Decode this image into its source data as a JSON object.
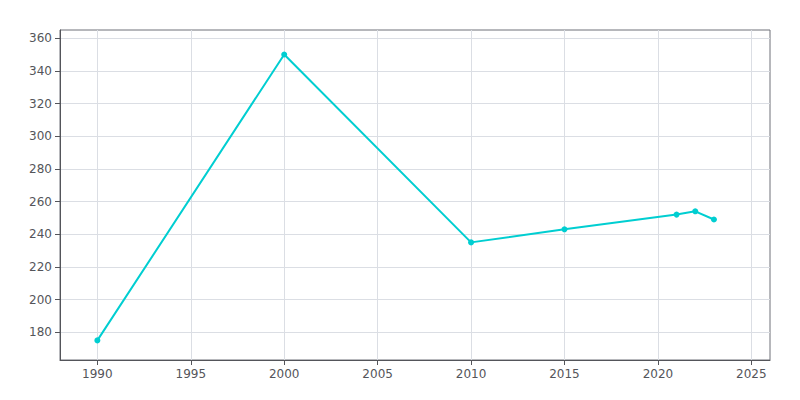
{
  "chart_data": {
    "type": "line",
    "x": [
      1990,
      2000,
      2010,
      2015,
      2021,
      2022,
      2023
    ],
    "values": [
      175,
      350,
      235,
      243,
      252,
      254,
      249
    ],
    "color": "#00CED1",
    "marker": "circle",
    "xlim": [
      1988,
      2026
    ],
    "ylim": [
      163,
      365
    ],
    "xticks": [
      1990,
      1995,
      2000,
      2005,
      2010,
      2015,
      2020,
      2025
    ],
    "yticks": [
      180,
      200,
      220,
      240,
      260,
      280,
      300,
      320,
      340,
      360
    ],
    "grid": true
  }
}
